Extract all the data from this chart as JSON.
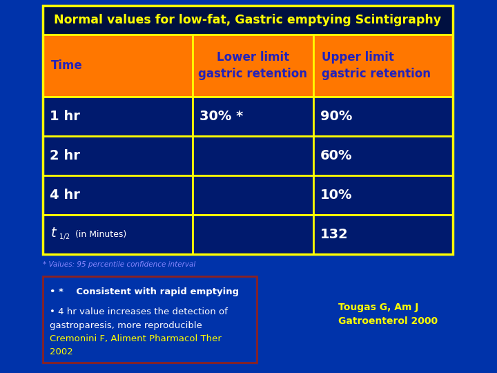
{
  "title": "Normal values for low-fat, Gastric emptying Scintigraphy",
  "title_color": "#FFFF00",
  "title_bg": "#001040",
  "bg_color_top": "#001850",
  "bg_color": "#0033AA",
  "header_bg": "#FF7700",
  "header_text_color": "#2222BB",
  "table_border_color": "#FFFF00",
  "cell_bg": "#001A6E",
  "cell_text_color": "#FFFFFF",
  "col_headers": [
    "Time",
    "Lower limit\ngastric retention",
    "Upper limit\ngastric retention"
  ],
  "rows": [
    [
      "1 hr",
      "30% *",
      "90%"
    ],
    [
      "2 hr",
      "",
      "60%"
    ],
    [
      "4 hr",
      "",
      "10%"
    ],
    [
      "t_half",
      "",
      "132"
    ]
  ],
  "footnote_small": "* Values: 95 percentile confidence interval",
  "footnote_small_color": "#8888FF",
  "bullet1_color": "#FFFFFF",
  "bullet1_text": "*    Consistent with rapid emptying",
  "bullet2_color": "#FFFFFF",
  "bullet2_line1": "4 hr value increases the detection of",
  "bullet2_line2": "gastroparesis, more reproducible",
  "bullet2_line3_color": "#FFFF00",
  "bullet2_line3": "Cremonini F, Aliment Pharmacol Ther",
  "bullet2_line4_color": "#FFFF00",
  "bullet2_line4": "2002",
  "ref_color": "#FFFF00",
  "ref_text": "Tougas G, Am J\nGatroenterol 2000",
  "box_border_color": "#8B2222"
}
